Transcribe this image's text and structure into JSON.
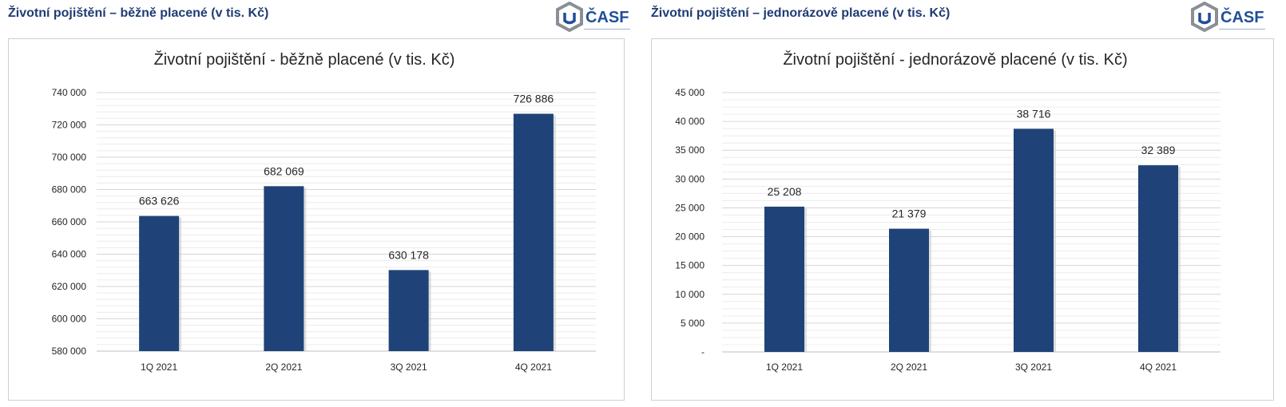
{
  "headers": {
    "left_title": "Životní pojištění – běžně placené (v tis. Kč)",
    "right_title": "Životní pojištění – jednorázově placené (v tis. Kč)",
    "logo_text": "ČASF"
  },
  "colors": {
    "bar": "#1f4378",
    "header_text": "#1f3b73",
    "logo_blue": "#1f4f9a",
    "logo_gray": "#8a8f96"
  },
  "chart_data": [
    {
      "type": "bar",
      "title": "Životní pojištění - běžně placené (v tis. Kč)",
      "categories": [
        "1Q 2021",
        "2Q 2021",
        "3Q 2021",
        "4Q 2021"
      ],
      "values": [
        663626,
        682069,
        630178,
        726886
      ],
      "data_labels": [
        "663 626",
        "682 069",
        "630 178",
        "726 886"
      ],
      "ylim": [
        580000,
        740000
      ],
      "yticks": [
        580000,
        600000,
        620000,
        640000,
        660000,
        680000,
        700000,
        720000,
        740000
      ],
      "ytick_labels": [
        "580 000",
        "600 000",
        "620 000",
        "640 000",
        "660 000",
        "680 000",
        "700 000",
        "720 000",
        "740 000"
      ],
      "grid": true,
      "legend": "none"
    },
    {
      "type": "bar",
      "title": "Životní pojištění - jednorázově placené (v tis. Kč)",
      "categories": [
        "1Q 2021",
        "2Q 2021",
        "3Q 2021",
        "4Q 2021"
      ],
      "values": [
        25208,
        21379,
        38716,
        32389
      ],
      "data_labels": [
        "25 208",
        "21 379",
        "38 716",
        "32 389"
      ],
      "ylim": [
        0,
        45000
      ],
      "yticks": [
        0,
        5000,
        10000,
        15000,
        20000,
        25000,
        30000,
        35000,
        40000,
        45000
      ],
      "ytick_labels": [
        "-",
        "5 000",
        "10 000",
        "15 000",
        "20 000",
        "25 000",
        "30 000",
        "35 000",
        "40 000",
        "45 000"
      ],
      "grid": true,
      "legend": "none"
    }
  ]
}
